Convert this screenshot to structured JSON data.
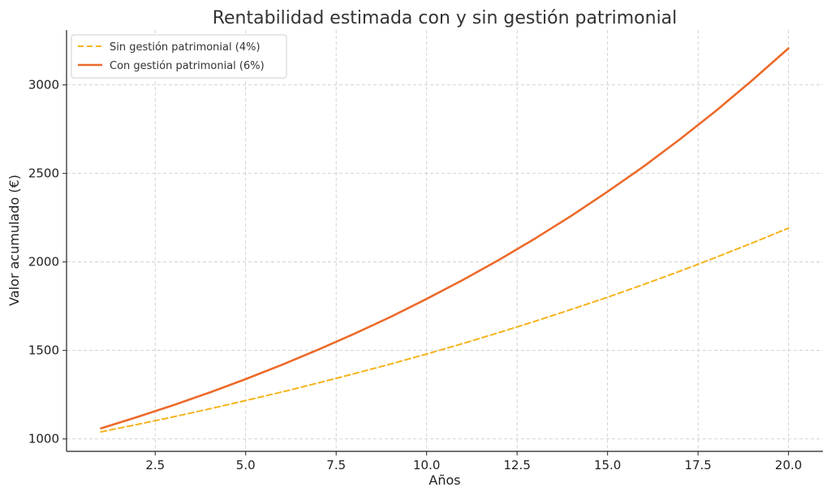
{
  "chart_data": {
    "type": "line",
    "title": "Rentabilidad estimada con y sin gestión patrimonial",
    "xlabel": "Años",
    "ylabel": "Valor acumulado (€)",
    "xlim": [
      0.05,
      20.95
    ],
    "ylim": [
      930,
      3310
    ],
    "xticks": [
      2.5,
      5.0,
      7.5,
      10.0,
      12.5,
      15.0,
      17.5,
      20.0
    ],
    "xtick_labels": [
      "2.5",
      "5.0",
      "7.5",
      "10.0",
      "12.5",
      "15.0",
      "17.5",
      "20.0"
    ],
    "yticks": [
      1000,
      1500,
      2000,
      2500,
      3000
    ],
    "ytick_labels": [
      "1000",
      "1500",
      "2000",
      "2500",
      "3000"
    ],
    "grid": true,
    "legend_position": "upper-left",
    "x": [
      1,
      2,
      3,
      4,
      5,
      6,
      7,
      8,
      9,
      10,
      11,
      12,
      13,
      14,
      15,
      16,
      17,
      18,
      19,
      20
    ],
    "series": [
      {
        "name": "Sin gestión patrimonial (4%)",
        "color": "#f5b31c",
        "style": "dashed",
        "values": [
          1040,
          1082,
          1125,
          1170,
          1217,
          1265,
          1316,
          1369,
          1423,
          1480,
          1539,
          1601,
          1665,
          1732,
          1801,
          1873,
          1948,
          2026,
          2107,
          2191
        ]
      },
      {
        "name": "Con gestión patrimonial (6%)",
        "color": "#ec6a2a",
        "style": "solid",
        "values": [
          1060,
          1124,
          1191,
          1262,
          1338,
          1419,
          1504,
          1594,
          1689,
          1791,
          1898,
          2012,
          2133,
          2261,
          2397,
          2540,
          2693,
          2854,
          3026,
          3207
        ]
      }
    ]
  }
}
